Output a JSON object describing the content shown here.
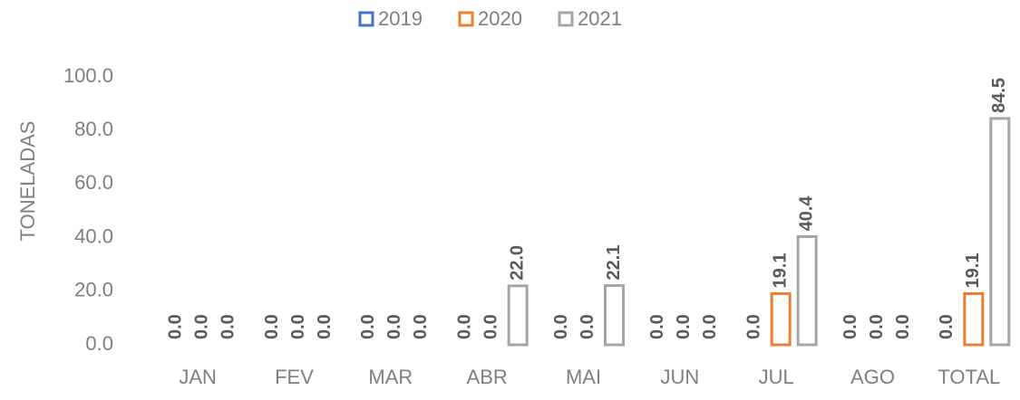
{
  "chart_data": {
    "type": "bar",
    "y_label": "TONELADAS",
    "categories": [
      "JAN",
      "FEV",
      "MAR",
      "ABR",
      "MAI",
      "JUN",
      "JUL",
      "AGO",
      "TOTAL"
    ],
    "series": [
      {
        "name": "2019",
        "color": "#4472c4",
        "values": [
          0,
          0,
          0,
          0,
          0,
          0,
          0,
          0,
          0
        ],
        "value_labels": [
          "0.0",
          "0.0",
          "0.0",
          "0.0",
          "0.0",
          "0.0",
          "0.0",
          "0.0",
          "0.0"
        ]
      },
      {
        "name": "2020",
        "color": "#ed7d31",
        "values": [
          0,
          0,
          0,
          0,
          0,
          0,
          19.1,
          0,
          19.1
        ],
        "value_labels": [
          "0.0",
          "0.0",
          "0.0",
          "0.0",
          "0.0",
          "0.0",
          "19.1",
          "0.0",
          "19.1"
        ]
      },
      {
        "name": "2021",
        "color": "#a5a5a5",
        "values": [
          0,
          0,
          0,
          22,
          22.1,
          0,
          40.4,
          0,
          84.5
        ],
        "value_labels": [
          "0.0",
          "0.0",
          "0.0",
          "22.0",
          "22.1",
          "0.0",
          "40.4",
          "0.0",
          "84.5"
        ]
      }
    ],
    "ylim": [
      0,
      100
    ],
    "yticks": [
      {
        "value": 0,
        "label": "0.0"
      },
      {
        "value": 20,
        "label": "20.0"
      },
      {
        "value": 40,
        "label": "40.0"
      },
      {
        "value": 60,
        "label": "60.0"
      },
      {
        "value": 80,
        "label": "80.0"
      },
      {
        "value": 100,
        "label": "100.0"
      }
    ],
    "grid": false,
    "legend": "top"
  }
}
